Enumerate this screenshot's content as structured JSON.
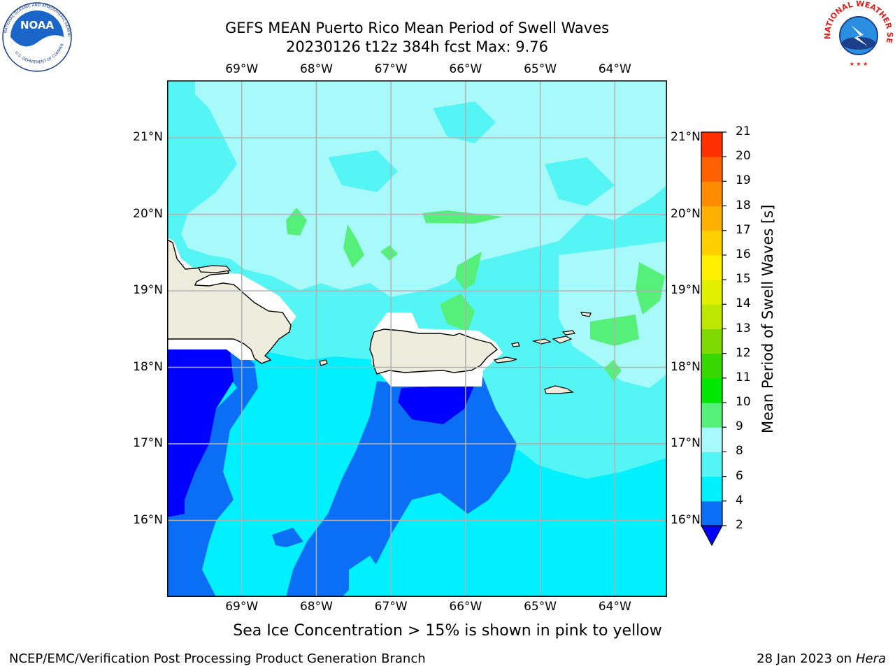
{
  "header": {
    "title_line1": "GEFS MEAN Puerto Rico Mean Period of Swell Waves",
    "title_line2": "20230126 t12z 384h fcst   Max: 9.76"
  },
  "map": {
    "lon_ticks": [
      "69°W",
      "68°W",
      "67°W",
      "66°W",
      "65°W",
      "64°W"
    ],
    "lat_ticks": [
      "21°N",
      "20°N",
      "19°N",
      "18°N",
      "17°N",
      "16°N"
    ],
    "lon_range": [
      -70.0,
      -63.3
    ],
    "lat_range": [
      15.0,
      21.75
    ],
    "land_color": "#eeecdc",
    "grid_color": "#b0b0b0"
  },
  "colorbar": {
    "title": "Mean Period of Swell Waves [s]",
    "levels": [
      "2",
      "4",
      "6",
      "8",
      "9",
      "10",
      "11",
      "12",
      "13",
      "14",
      "15",
      "16",
      "17",
      "18",
      "19",
      "20",
      "21"
    ],
    "colors": [
      "#0a6ff5",
      "#00f0ff",
      "#55f5f5",
      "#a8fafa",
      "#55f07a",
      "#00e600",
      "#38d700",
      "#7dd900",
      "#bde600",
      "#e0f000",
      "#fff000",
      "#ffd000",
      "#ffb000",
      "#ff8c00",
      "#ff6000",
      "#ff3000",
      "#ff0000"
    ],
    "under_color": "#0000ff"
  },
  "notes": {
    "sea_ice": "Sea Ice Concentration > 15% is shown in pink to yellow"
  },
  "footer": {
    "left": "NCEP/EMC/Verification Post Processing Product Generation Branch",
    "date": "28 Jan 2023 on ",
    "machine": "Hera"
  },
  "logos": {
    "noaa": "NOAA",
    "nws": "NATIONAL WEATHER SERVICE",
    "noaa_ring": "NATIONAL OCEANIC AND ATMOSPHERIC ADMINISTRATION",
    "noaa_ring_bottom": "U.S. DEPARTMENT OF COMMERCE"
  }
}
